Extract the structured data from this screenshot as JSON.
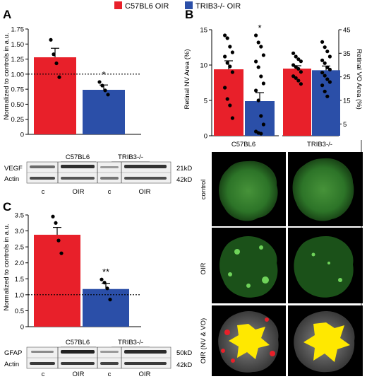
{
  "legend": {
    "items": [
      {
        "label": "C57BL6 OIR",
        "color": "#e8202a"
      },
      {
        "label": "TRIB3-/- OIR",
        "color": "#2b4fa8"
      }
    ]
  },
  "panels": {
    "a": {
      "label": "A"
    },
    "b": {
      "label": "B"
    },
    "c": {
      "label": "C"
    }
  },
  "blots": {
    "a": {
      "groups": [
        "C57BL6",
        "TRIB3-/-"
      ],
      "lanes": [
        "c",
        "OIR",
        "c",
        "OIR"
      ],
      "rows": [
        {
          "name": "VEGF",
          "size": "21kD"
        },
        {
          "name": "Actin",
          "size": "42kD"
        }
      ]
    },
    "c": {
      "groups": [
        "C57BL6",
        "TRIB3-/-"
      ],
      "lanes": [
        "c",
        "OIR",
        "c",
        "OIR"
      ],
      "rows": [
        {
          "name": "GFAP",
          "size": "50kD"
        },
        {
          "name": "Actin",
          "size": "42kD"
        }
      ]
    }
  },
  "retina_images": {
    "columns": [
      "C57BL6",
      "TRIB3-/-"
    ],
    "rows": [
      "control",
      "OIR",
      "OIR (NV & VO)"
    ]
  },
  "chart_data": [
    {
      "id": "A",
      "type": "bar",
      "categories": [
        "C57BL6 OIR",
        "TRIB3-/- OIR"
      ],
      "values": [
        1.28,
        0.74
      ],
      "errors": [
        0.15,
        0.08
      ],
      "points": [
        [
          1.57,
          1.33,
          1.18,
          0.95
        ],
        [
          0.87,
          0.81,
          0.73,
          0.66
        ]
      ],
      "colors": [
        "#e8202a",
        "#2b4fa8"
      ],
      "ylabel": "Normalized to controls in a.u.",
      "ylim": [
        0,
        1.75
      ],
      "yticks": [
        "0",
        "0.25",
        "0.50",
        "0.75",
        "1.00",
        "1.25",
        "1.50",
        "1.75"
      ],
      "reference_line": 1.0,
      "annotation": "*"
    },
    {
      "id": "B-NV",
      "type": "bar",
      "categories": [
        "C57BL6 OIR",
        "TRIB3-/- OIR"
      ],
      "values": [
        9.4,
        4.9
      ],
      "errors": [
        1.2,
        1.2
      ],
      "points": [
        [
          14.2,
          13.8,
          12.6,
          11.8,
          11.2,
          10.3,
          9.8,
          9.0,
          6.8,
          5.2,
          4.3,
          2.5
        ],
        [
          14.2,
          13.2,
          12.6,
          11.4,
          10.5,
          9.7,
          8.4,
          7.4,
          6.4,
          5.0,
          2.8,
          1.6,
          0.6,
          0.4,
          0.3
        ]
      ],
      "colors": [
        "#e8202a",
        "#2b4fa8"
      ],
      "ylabel": "Retinal NV Area (%)",
      "ylim": [
        0,
        15
      ],
      "yticks": [
        "0",
        "5",
        "10",
        "15"
      ],
      "annotation": "*"
    },
    {
      "id": "B-VO",
      "type": "bar",
      "categories": [
        "C57BL6 OIR",
        "TRIB3-/- OIR"
      ],
      "values": [
        28.5,
        27.8
      ],
      "errors": [
        1.2,
        1.8
      ],
      "points": [
        [
          35.0,
          33.6,
          32.5,
          31.6,
          30.0,
          29.2,
          28.4,
          27.1,
          25.3,
          24.5,
          23.4,
          22.0
        ],
        [
          39.8,
          37.6,
          35.8,
          33.6,
          32.0,
          30.8,
          29.0,
          28.1,
          26.8,
          25.5,
          24.0,
          22.8,
          21.4,
          18.8,
          16.7
        ]
      ],
      "colors": [
        "#e8202a",
        "#2b4fa8"
      ],
      "ylabel": "Retinal VO Area (%)",
      "ylim": [
        0,
        45
      ],
      "yticks": [
        "5",
        "15",
        "25",
        "35",
        "45"
      ]
    },
    {
      "id": "C",
      "type": "bar",
      "categories": [
        "C57BL6 OIR",
        "TRIB3-/- OIR"
      ],
      "values": [
        2.88,
        1.18
      ],
      "errors": [
        0.23,
        0.18
      ],
      "points": [
        [
          3.45,
          3.25,
          2.7,
          2.3
        ],
        [
          1.48,
          1.38,
          1.2,
          0.85
        ]
      ],
      "colors": [
        "#e8202a",
        "#2b4fa8"
      ],
      "ylabel": "Normalized to controls in a.u.",
      "ylim": [
        0,
        3.5
      ],
      "yticks": [
        "0",
        "0.5",
        "1.0",
        "1.5",
        "2.0",
        "2.5",
        "3.0",
        "3.5"
      ],
      "reference_line": 1.0,
      "annotation": "**"
    }
  ]
}
